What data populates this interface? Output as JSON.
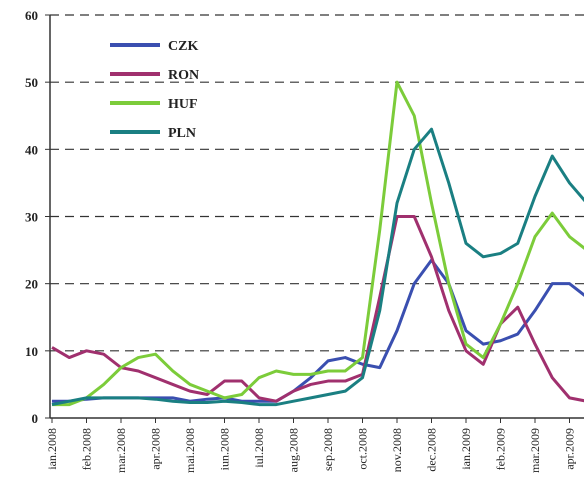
{
  "chart_data": {
    "type": "line",
    "categories": [
      "ian.2008",
      null,
      "feb.2008",
      null,
      "mar.2008",
      null,
      "apr.2008",
      null,
      "mai.2008",
      null,
      "iun.2008",
      null,
      "iul.2008",
      null,
      "aug.2008",
      null,
      "sep.2008",
      null,
      "oct.2008",
      null,
      "nov.2008",
      null,
      "dec.2008",
      null,
      "ian.2009",
      null,
      "feb.2009",
      null,
      "mar.2009",
      null,
      "apr.2009",
      null
    ],
    "series": [
      {
        "name": "CZK",
        "color": "#3a4fb0",
        "values": [
          2.5,
          2.5,
          2.8,
          3,
          3,
          3,
          3,
          3,
          2.5,
          2.8,
          3,
          2.5,
          2.5,
          2.5,
          4,
          6,
          8.5,
          9,
          8,
          7.5,
          13,
          20,
          23.5,
          20,
          13,
          11,
          11.5,
          12.5,
          16,
          20,
          20,
          18
        ]
      },
      {
        "name": "RON",
        "color": "#a0306e",
        "values": [
          10.5,
          9,
          10,
          9.5,
          7.5,
          7,
          6,
          5,
          4,
          3.5,
          5.5,
          5.5,
          3,
          2.5,
          4,
          5,
          5.5,
          5.5,
          6.5,
          18,
          30,
          30,
          24,
          16,
          10,
          8,
          14,
          16.5,
          11,
          6,
          3,
          2.5
        ]
      },
      {
        "name": "HUF",
        "color": "#7ccc3a",
        "values": [
          2,
          2,
          3,
          5,
          7.5,
          9,
          9.5,
          7,
          5,
          4,
          3,
          3.5,
          6,
          7,
          6.5,
          6.5,
          7,
          7,
          9,
          28,
          50,
          45,
          32,
          20,
          11,
          9,
          14,
          20,
          27,
          30.5,
          27,
          25
        ]
      },
      {
        "name": "PLN",
        "color": "#1a7f82",
        "values": [
          2,
          2.5,
          3,
          3,
          3,
          3,
          2.8,
          2.5,
          2.3,
          2.3,
          2.5,
          2.3,
          2,
          2,
          2.5,
          3,
          3.5,
          4,
          6,
          16,
          32,
          40,
          43,
          35,
          26,
          24,
          24.5,
          26,
          33,
          39,
          35,
          32
        ]
      }
    ],
    "ylim": [
      0,
      60
    ],
    "yticks": [
      0,
      10,
      20,
      30,
      40,
      50,
      60
    ],
    "grid": true,
    "legend": "upper left"
  }
}
